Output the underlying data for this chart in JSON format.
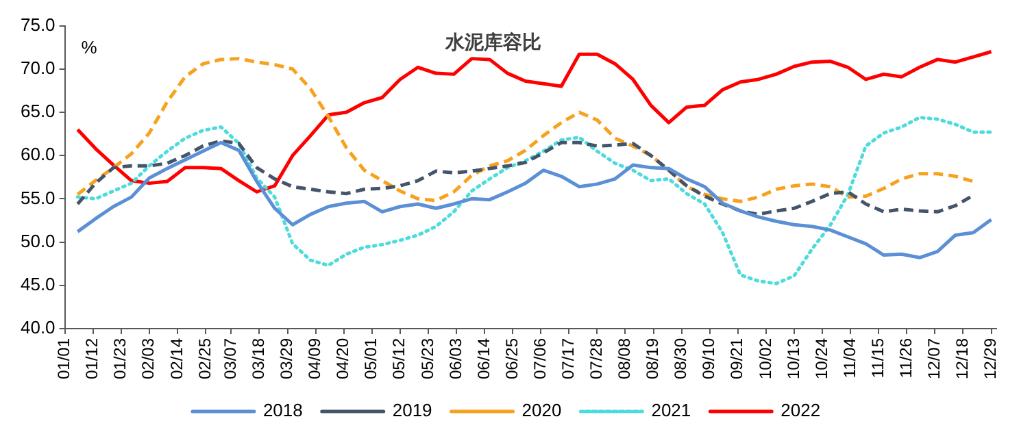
{
  "chart_data": {
    "type": "line",
    "title": "水泥库容比",
    "ylabel": "%",
    "legend": "bottom",
    "x": [
      "--01-06",
      "--01-13",
      "--01-20",
      "--01-27",
      "--02-03",
      "--02-10",
      "--02-17",
      "--02-24",
      "--03-03",
      "--03-10",
      "--03-17",
      "--03-24",
      "--03-31",
      "--04-07",
      "--04-14",
      "--04-21",
      "--04-28",
      "--05-05",
      "--05-12",
      "--05-19",
      "--05-26",
      "--06-02",
      "--06-09",
      "--06-16",
      "--06-23",
      "--06-30",
      "--07-07",
      "--07-14",
      "--07-21",
      "--07-28",
      "--08-04",
      "--08-11",
      "--08-18",
      "--08-25",
      "--09-01",
      "--09-08",
      "--09-15",
      "--09-22",
      "--09-29",
      "--10-06",
      "--10-13",
      "--10-20",
      "--10-27",
      "--11-03",
      "--11-10",
      "--11-17",
      "--11-24",
      "--12-01",
      "--12-08",
      "--12-15",
      "--12-22",
      "--12-29"
    ],
    "xlim": [
      "--01-01",
      "--12-31"
    ],
    "xticks": [
      {
        "value": "--01-01",
        "label": "01/01"
      },
      {
        "value": "--01-12",
        "label": "01/12"
      },
      {
        "value": "--01-23",
        "label": "01/23"
      },
      {
        "value": "--02-03",
        "label": "02/03"
      },
      {
        "value": "--02-14",
        "label": "02/14"
      },
      {
        "value": "--02-25",
        "label": "02/25"
      },
      {
        "value": "--03-07",
        "label": "03/07"
      },
      {
        "value": "--03-18",
        "label": "03/18"
      },
      {
        "value": "--03-29",
        "label": "03/29"
      },
      {
        "value": "--04-09",
        "label": "04/09"
      },
      {
        "value": "--04-20",
        "label": "04/20"
      },
      {
        "value": "--05-01",
        "label": "05/01"
      },
      {
        "value": "--05-12",
        "label": "05/12"
      },
      {
        "value": "--05-23",
        "label": "05/23"
      },
      {
        "value": "--06-03",
        "label": "06/03"
      },
      {
        "value": "--06-14",
        "label": "06/14"
      },
      {
        "value": "--06-25",
        "label": "06/25"
      },
      {
        "value": "--07-06",
        "label": "07/06"
      },
      {
        "value": "--07-17",
        "label": "07/17"
      },
      {
        "value": "--07-28",
        "label": "07/28"
      },
      {
        "value": "--08-08",
        "label": "08/08"
      },
      {
        "value": "--08-19",
        "label": "08/19"
      },
      {
        "value": "--08-30",
        "label": "08/30"
      },
      {
        "value": "--09-10",
        "label": "09/10"
      },
      {
        "value": "--09-21",
        "label": "09/21"
      },
      {
        "value": "--10-02",
        "label": "10/02"
      },
      {
        "value": "--10-13",
        "label": "10/13"
      },
      {
        "value": "--10-24",
        "label": "10/24"
      },
      {
        "value": "--11-04",
        "label": "11/04"
      },
      {
        "value": "--11-15",
        "label": "11/15"
      },
      {
        "value": "--11-26",
        "label": "11/26"
      },
      {
        "value": "--12-07",
        "label": "12/07"
      },
      {
        "value": "--12-18",
        "label": "12/18"
      },
      {
        "value": "--12-29",
        "label": "12/29"
      }
    ],
    "ylim": [
      40,
      75
    ],
    "yticks": [
      {
        "value": 40,
        "label": "40.0"
      },
      {
        "value": 45,
        "label": "45.0"
      },
      {
        "value": 50,
        "label": "50.0"
      },
      {
        "value": 55,
        "label": "55.0"
      },
      {
        "value": 60,
        "label": "60.0"
      },
      {
        "value": 65,
        "label": "65.0"
      },
      {
        "value": 70,
        "label": "70.0"
      },
      {
        "value": 75,
        "label": "75.0"
      }
    ],
    "series": [
      {
        "name": "2018",
        "color": "#5b8fd6",
        "line_style": "solid",
        "values": [
          51.2,
          52.7,
          54.1,
          55.2,
          57.4,
          58.5,
          59.5,
          60.5,
          61.5,
          60.6,
          57.0,
          53.9,
          52.0,
          53.2,
          54.1,
          54.5,
          54.7,
          53.5,
          54.1,
          54.4,
          53.9,
          54.4,
          55.0,
          54.9,
          55.8,
          56.8,
          58.3,
          57.6,
          56.4,
          56.7,
          57.3,
          58.9,
          58.6,
          58.5,
          57.3,
          56.4,
          54.5,
          53.6,
          52.9,
          52.4,
          52.0,
          51.8,
          51.4,
          50.6,
          49.8,
          48.5,
          48.6,
          48.2,
          48.9,
          50.8,
          51.1,
          52.6
        ]
      },
      {
        "name": "2019",
        "color": "#44546a",
        "line_style": "dashed",
        "values": [
          54.4,
          56.8,
          58.6,
          58.8,
          58.8,
          59.1,
          60.0,
          61.1,
          61.7,
          61.4,
          58.6,
          57.3,
          56.4,
          56.1,
          55.8,
          55.6,
          56.1,
          56.2,
          56.5,
          57.1,
          58.2,
          58.0,
          58.2,
          58.5,
          58.8,
          59.2,
          60.3,
          61.5,
          61.5,
          61.1,
          61.2,
          61.4,
          60.0,
          58.3,
          56.5,
          55.3,
          54.4,
          53.6,
          53.2,
          53.6,
          53.9,
          54.7,
          55.6,
          55.8,
          54.4,
          53.5,
          53.8,
          53.6,
          53.5,
          54.2,
          55.4,
          null
        ]
      },
      {
        "name": "2020",
        "color": "#f7a21f",
        "line_style": "dashed",
        "values": [
          55.5,
          57.1,
          58.6,
          60.2,
          62.6,
          66.2,
          69.1,
          70.6,
          71.1,
          71.2,
          70.8,
          70.5,
          70.0,
          67.7,
          64.5,
          60.9,
          58.3,
          57.1,
          55.9,
          55.0,
          54.8,
          55.8,
          57.7,
          58.8,
          59.4,
          60.6,
          62.3,
          63.8,
          65.0,
          64.1,
          62.0,
          61.1,
          60.0,
          58.3,
          56.4,
          55.5,
          55.0,
          54.7,
          55.2,
          56.1,
          56.5,
          56.7,
          56.4,
          55.2,
          55.3,
          56.2,
          57.3,
          57.9,
          57.9,
          57.6,
          57.0,
          null
        ]
      },
      {
        "name": "2021",
        "color": "#4ddbdb",
        "line_style": "dotted",
        "values": [
          55.2,
          55.0,
          55.9,
          56.8,
          58.8,
          60.5,
          62.0,
          62.9,
          63.3,
          61.4,
          57.4,
          55.2,
          49.8,
          47.9,
          47.3,
          48.6,
          49.4,
          49.7,
          50.2,
          50.8,
          51.8,
          53.5,
          55.9,
          57.3,
          58.6,
          59.4,
          60.5,
          61.8,
          62.1,
          60.5,
          59.1,
          58.3,
          57.1,
          57.3,
          55.6,
          54.4,
          51.1,
          46.2,
          45.5,
          45.2,
          46.1,
          49.2,
          51.9,
          55.5,
          61.1,
          62.6,
          63.3,
          64.4,
          64.2,
          63.6,
          62.7,
          62.7
        ]
      },
      {
        "name": "2022",
        "color": "#ff0000",
        "line_style": "solid",
        "values": [
          63.0,
          60.8,
          58.9,
          57.1,
          56.8,
          57.0,
          58.6,
          58.6,
          58.5,
          57.1,
          55.8,
          56.5,
          60.0,
          62.3,
          64.7,
          65.0,
          66.1,
          66.7,
          68.8,
          70.2,
          69.5,
          69.4,
          71.2,
          71.1,
          69.5,
          68.6,
          68.3,
          68.0,
          71.7,
          71.7,
          70.6,
          68.8,
          65.8,
          63.8,
          65.6,
          65.8,
          67.6,
          68.5,
          68.8,
          69.4,
          70.3,
          70.8,
          70.9,
          70.2,
          68.8,
          69.4,
          69.1,
          70.2,
          71.1,
          70.8,
          71.4,
          72.0
        ]
      }
    ]
  }
}
